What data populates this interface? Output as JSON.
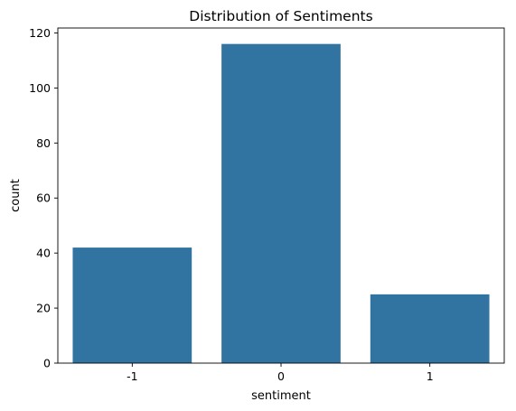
{
  "chart_data": {
    "type": "bar",
    "title": "Distribution of Sentiments",
    "xlabel": "sentiment",
    "ylabel": "count",
    "categories": [
      "-1",
      "0",
      "1"
    ],
    "values": [
      42,
      116,
      25
    ],
    "ylim": [
      0,
      121.8
    ],
    "yticks": [
      0,
      20,
      40,
      60,
      80,
      100,
      120
    ],
    "grid": false,
    "legend": "none",
    "colors": {
      "bar": "#3274a1",
      "axis": "#000000",
      "background": "#ffffff"
    }
  }
}
